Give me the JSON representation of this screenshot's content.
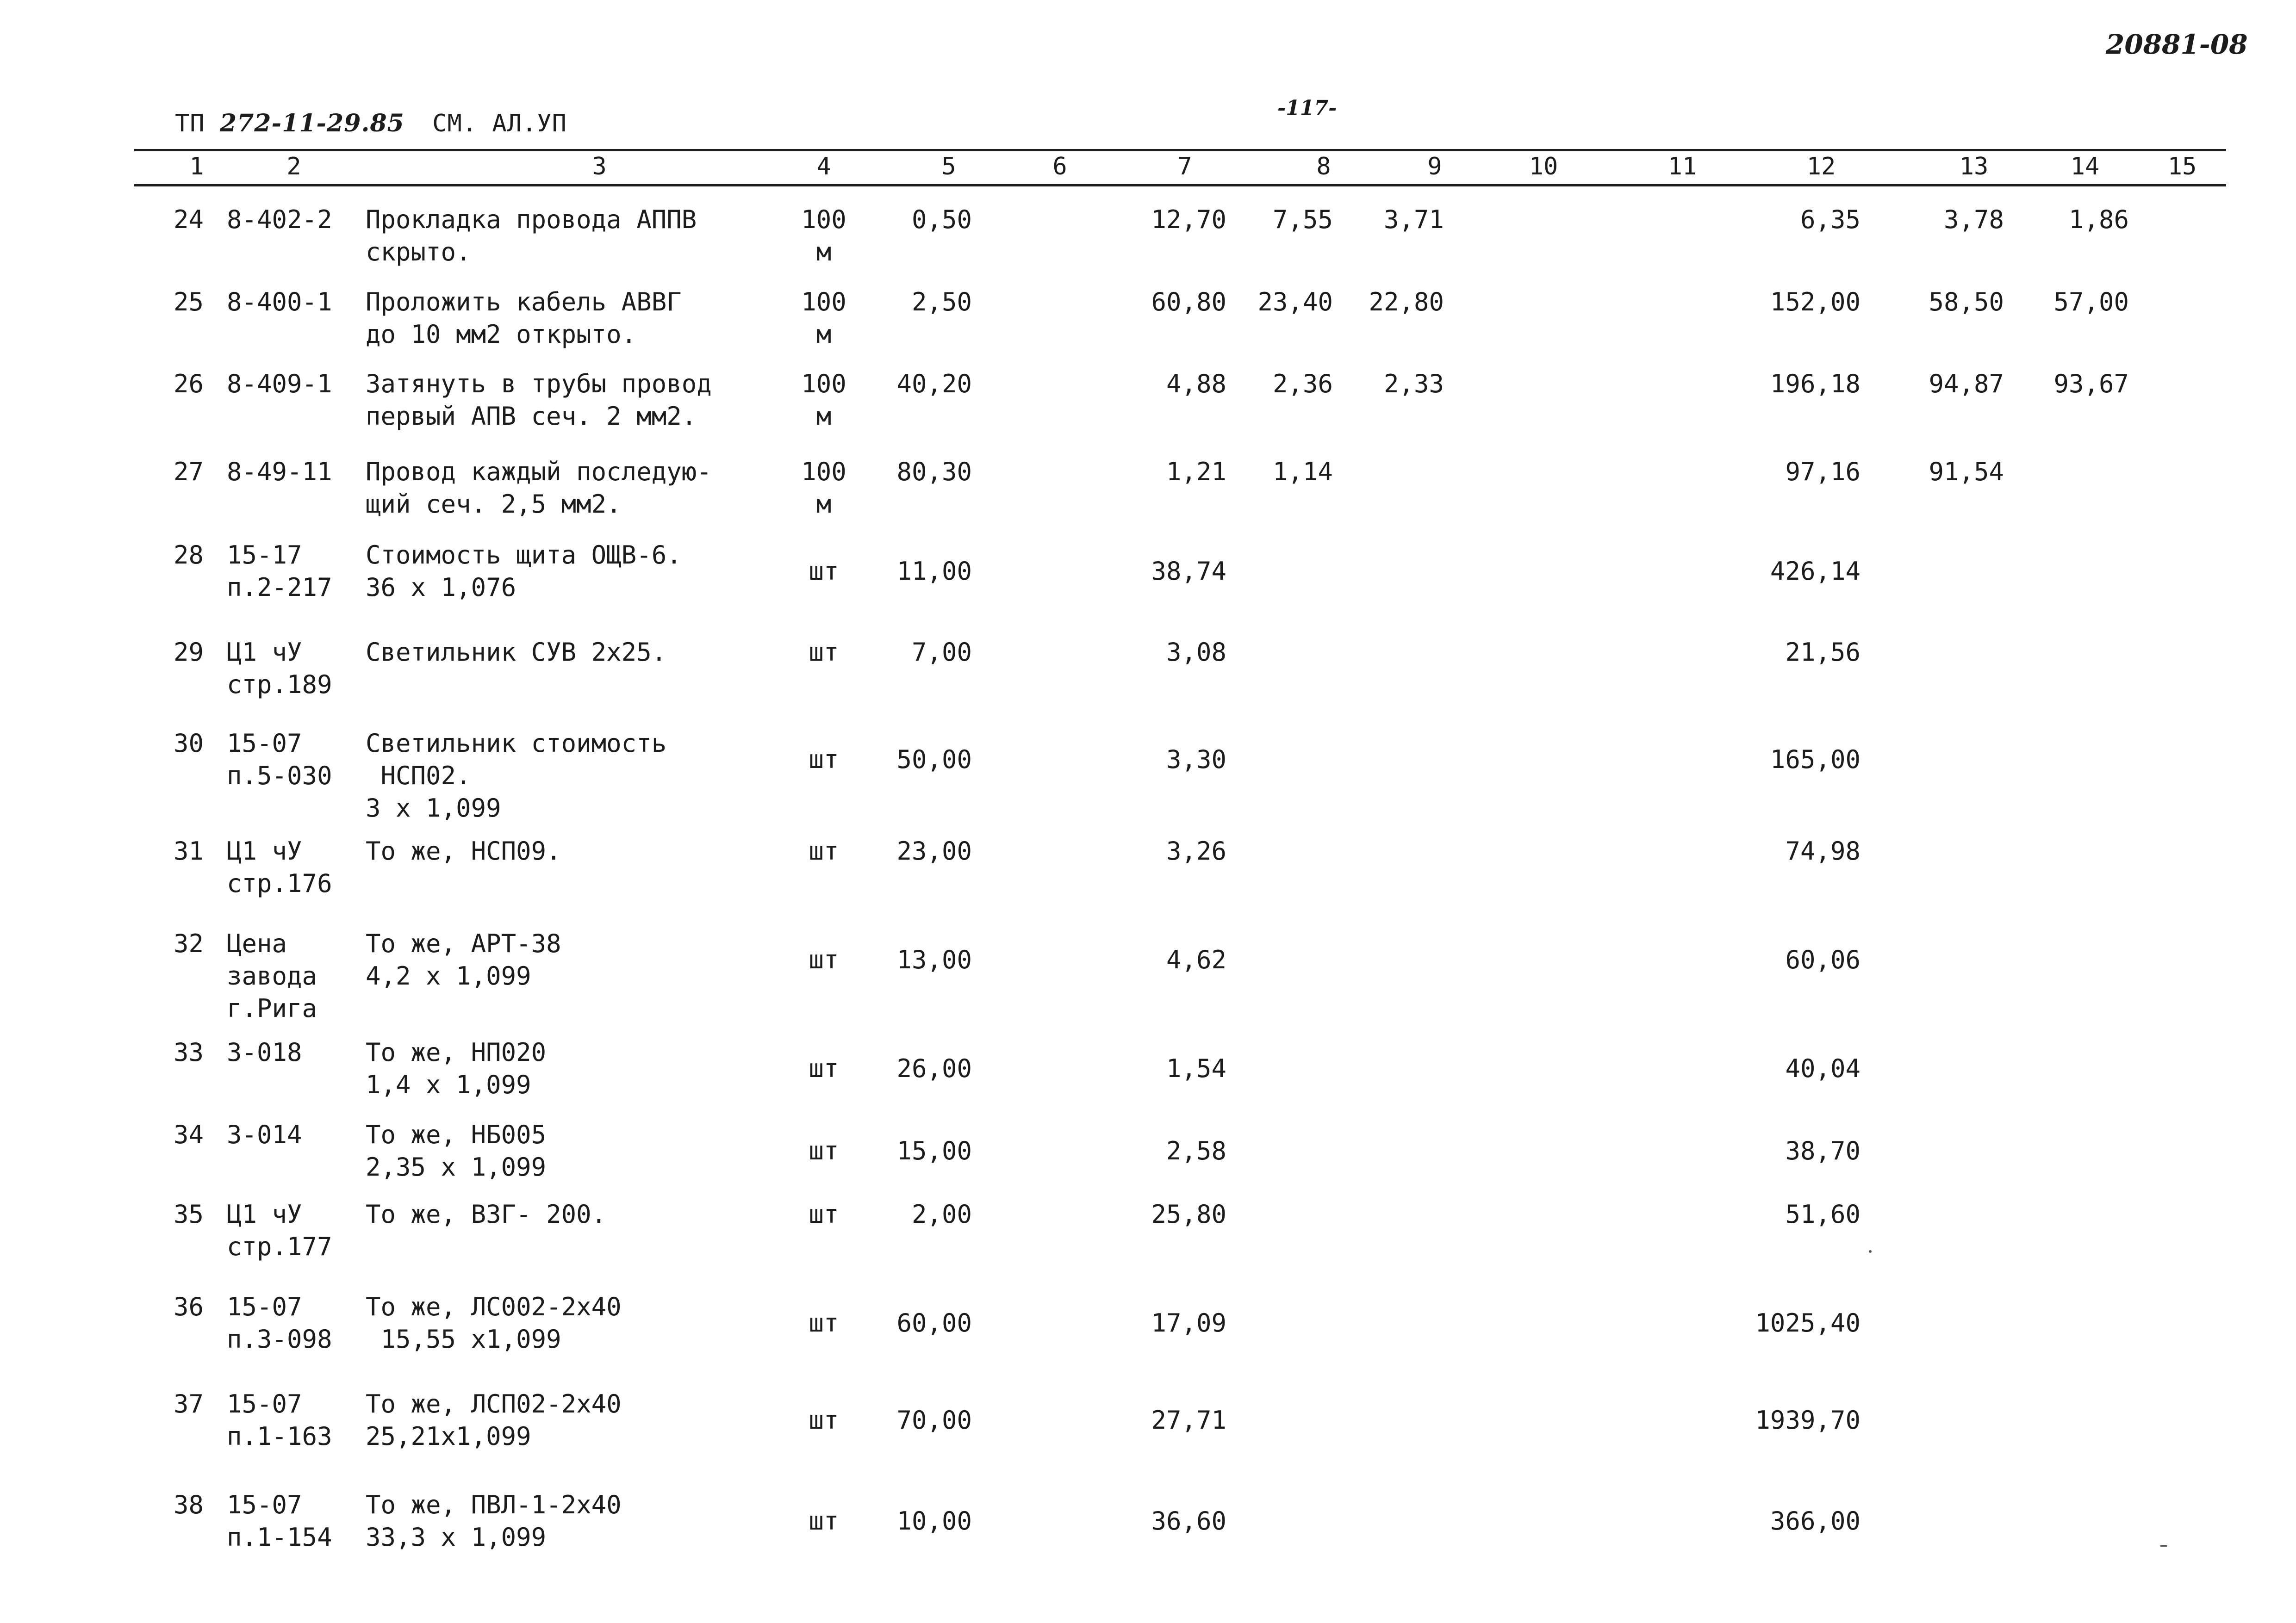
{
  "header": {
    "doc_ref_print": "ТП",
    "doc_ref_hand": "272-11-29.85",
    "doc_ref_suffix": "СМ. АЛ.УП",
    "page_num": "-117-",
    "sheet_code": "20881-08"
  },
  "columns": [
    "1",
    "2",
    "3",
    "4",
    "5",
    "6",
    "7",
    "8",
    "9",
    "10",
    "11",
    "12",
    "13",
    "14",
    "15"
  ],
  "rows": [
    {
      "n": "24",
      "code": [
        "8-402-2"
      ],
      "name": [
        "Прокладка провода АППВ",
        "скрыто."
      ],
      "unit": [
        "100",
        "м"
      ],
      "qty": "0,50",
      "price": "12,70",
      "c8": "7,55",
      "c9": "3,71",
      "total": "6,35",
      "c13": "3,78",
      "c14": "1,86"
    },
    {
      "n": "25",
      "code": [
        "8-400-1"
      ],
      "name": [
        "Проложить кабель АВВГ",
        "до 10 мм2 открыто."
      ],
      "unit": [
        "100",
        "м"
      ],
      "qty": "2,50",
      "price": "60,80",
      "c8": "23,40",
      "c9": "22,80",
      "total": "152,00",
      "c13": "58,50",
      "c14": "57,00"
    },
    {
      "n": "26",
      "code": [
        "8-409-1"
      ],
      "name": [
        "Затянуть в трубы провод",
        "первый АПВ сеч. 2 мм2."
      ],
      "unit": [
        "100",
        "м"
      ],
      "qty": "40,20",
      "price": "4,88",
      "c8": "2,36",
      "c9": "2,33",
      "total": "196,18",
      "c13": "94,87",
      "c14": "93,67"
    },
    {
      "n": "27",
      "code": [
        "8-49-11"
      ],
      "name": [
        "Провод каждый последую-",
        "щий сеч. 2,5 мм2."
      ],
      "unit": [
        "100",
        "м"
      ],
      "qty": "80,30",
      "price": "1,21",
      "c8": "1,14",
      "c9": "",
      "total": "97,16",
      "c13": "91,54",
      "c14": ""
    },
    {
      "n": "28",
      "code": [
        "15-17",
        "п.2-217"
      ],
      "name": [
        "Стоимость щита ОЩВ-6.",
        "36 х 1,076"
      ],
      "unit": [
        "шт"
      ],
      "qty": "11,00",
      "price": "38,74",
      "c8": "",
      "c9": "",
      "total": "426,14",
      "c13": "",
      "c14": ""
    },
    {
      "n": "29",
      "code": [
        "Ц1 чУ",
        "стр.189"
      ],
      "name": [
        "Светильник СУВ 2х25."
      ],
      "unit": [
        "шт"
      ],
      "qty": "7,00",
      "price": "3,08",
      "c8": "",
      "c9": "",
      "total": "21,56",
      "c13": "",
      "c14": ""
    },
    {
      "n": "30",
      "code": [
        "15-07",
        "п.5-030"
      ],
      "name": [
        "Светильник стоимость",
        " НСП02.",
        "3 х 1,099"
      ],
      "unit": [
        "шт"
      ],
      "qty": "50,00",
      "price": "3,30",
      "c8": "",
      "c9": "",
      "total": "165,00",
      "c13": "",
      "c14": ""
    },
    {
      "n": "31",
      "code": [
        "Ц1 чУ",
        "стр.176"
      ],
      "name": [
        "То же, НСП09."
      ],
      "unit": [
        "шт"
      ],
      "qty": "23,00",
      "price": "3,26",
      "c8": "",
      "c9": "",
      "total": "74,98",
      "c13": "",
      "c14": ""
    },
    {
      "n": "32",
      "code": [
        "Цена",
        "завода",
        "г.Рига"
      ],
      "name": [
        "То же, АРТ-38",
        "4,2 х 1,099"
      ],
      "unit": [
        "шт"
      ],
      "qty": "13,00",
      "price": "4,62",
      "c8": "",
      "c9": "",
      "total": "60,06",
      "c13": "",
      "c14": ""
    },
    {
      "n": "33",
      "code": [
        "3-018"
      ],
      "name": [
        "То же, НП020",
        "1,4 х 1,099"
      ],
      "unit": [
        "шт"
      ],
      "qty": "26,00",
      "price": "1,54",
      "c8": "",
      "c9": "",
      "total": "40,04",
      "c13": "",
      "c14": ""
    },
    {
      "n": "34",
      "code": [
        "3-014"
      ],
      "name": [
        "То же, НБ005",
        "2,35 х 1,099"
      ],
      "unit": [
        "шт"
      ],
      "qty": "15,00",
      "price": "2,58",
      "c8": "",
      "c9": "",
      "total": "38,70",
      "c13": "",
      "c14": ""
    },
    {
      "n": "35",
      "code": [
        "Ц1 чУ",
        "стр.177"
      ],
      "name": [
        "То же, ВЗГ- 200."
      ],
      "unit": [
        "шт"
      ],
      "qty": "2,00",
      "price": "25,80",
      "c8": "",
      "c9": "",
      "total": "51,60",
      "c13": "",
      "c14": ""
    },
    {
      "n": "36",
      "code": [
        "15-07",
        "п.3-098"
      ],
      "name": [
        "То же, ЛС002-2х40",
        " 15,55 х1,099"
      ],
      "unit": [
        "шт"
      ],
      "qty": "60,00",
      "price": "17,09",
      "c8": "",
      "c9": "",
      "total": "1025,40",
      "c13": "",
      "c14": ""
    },
    {
      "n": "37",
      "code": [
        "15-07",
        "п.1-163"
      ],
      "name": [
        "То же, ЛСП02-2х40",
        "25,21х1,099"
      ],
      "unit": [
        "шт"
      ],
      "qty": "70,00",
      "price": "27,71",
      "c8": "",
      "c9": "",
      "total": "1939,70",
      "c13": "",
      "c14": ""
    },
    {
      "n": "38",
      "code": [
        "15-07",
        "п.1-154"
      ],
      "name": [
        "То же, ПВЛ-1-2х40",
        "33,3 х 1,099"
      ],
      "unit": [
        "шт"
      ],
      "qty": "10,00",
      "price": "36,60",
      "c8": "",
      "c9": "",
      "total": "366,00",
      "c13": "",
      "c14": ""
    }
  ]
}
